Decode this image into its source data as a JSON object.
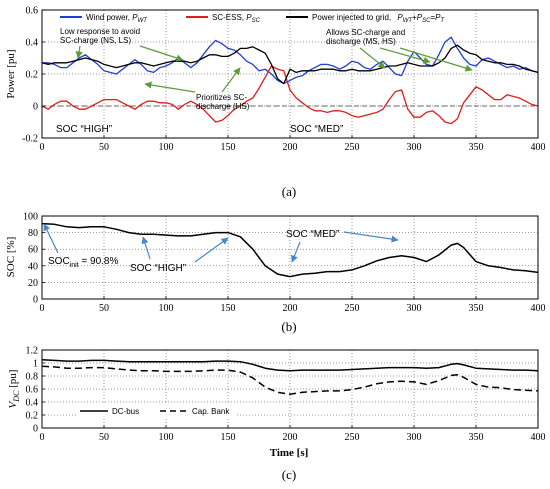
{
  "chart_data": [
    {
      "type": "line",
      "panel": "(a)",
      "ylabel": "Power [pu]",
      "xlim": [
        0,
        400
      ],
      "ylim": [
        -0.2,
        0.6
      ],
      "xticks": [
        0,
        50,
        100,
        150,
        200,
        250,
        300,
        350,
        400
      ],
      "yticks": [
        -0.2,
        0,
        0.2,
        0.4,
        0.6
      ],
      "ytick_labels": [
        "-0.2",
        "0",
        "0.2",
        "0.4",
        "0.6"
      ],
      "grid": true,
      "legend_placement": "top",
      "legend": [
        {
          "text": "Wind power, ",
          "var": "P",
          "sub": "WT"
        },
        {
          "text": "SC-ESS, ",
          "var": "P",
          "sub": "SC"
        },
        {
          "text": "Power injected to grid, ",
          "var": "P",
          "sub": "WT",
          "suffix": "+P",
          "suffix_sub": "SC",
          "suffix2": "=P",
          "suffix2_sub": "T"
        }
      ],
      "series": [
        {
          "name": "Wind power",
          "color": "#1f3fd8",
          "x": [
            0,
            5,
            10,
            15,
            20,
            25,
            30,
            35,
            40,
            45,
            50,
            55,
            60,
            65,
            70,
            75,
            80,
            85,
            90,
            95,
            100,
            105,
            110,
            115,
            120,
            125,
            130,
            135,
            140,
            145,
            150,
            155,
            160,
            165,
            170,
            175,
            180,
            185,
            190,
            195,
            200,
            205,
            210,
            215,
            220,
            225,
            230,
            235,
            240,
            245,
            250,
            255,
            260,
            265,
            270,
            275,
            280,
            285,
            290,
            295,
            300,
            305,
            310,
            315,
            320,
            325,
            330,
            335,
            340,
            345,
            350,
            355,
            360,
            365,
            370,
            375,
            380,
            385,
            390,
            395,
            400
          ],
          "y": [
            0.27,
            0.27,
            0.26,
            0.24,
            0.24,
            0.27,
            0.3,
            0.32,
            0.29,
            0.26,
            0.22,
            0.21,
            0.2,
            0.23,
            0.26,
            0.29,
            0.26,
            0.22,
            0.21,
            0.24,
            0.25,
            0.27,
            0.3,
            0.27,
            0.24,
            0.27,
            0.32,
            0.37,
            0.41,
            0.39,
            0.36,
            0.35,
            0.32,
            0.28,
            0.26,
            0.22,
            0.23,
            0.2,
            0.16,
            0.14,
            0.16,
            0.18,
            0.19,
            0.22,
            0.24,
            0.26,
            0.26,
            0.25,
            0.23,
            0.25,
            0.28,
            0.27,
            0.24,
            0.23,
            0.26,
            0.28,
            0.24,
            0.2,
            0.19,
            0.28,
            0.34,
            0.3,
            0.26,
            0.25,
            0.32,
            0.4,
            0.43,
            0.36,
            0.3,
            0.26,
            0.25,
            0.29,
            0.3,
            0.28,
            0.26,
            0.24,
            0.25,
            0.23,
            0.24,
            0.22,
            0.21
          ]
        },
        {
          "name": "SC-ESS",
          "color": "#e21c1c",
          "x": [
            0,
            5,
            10,
            15,
            20,
            25,
            30,
            35,
            40,
            45,
            50,
            55,
            60,
            65,
            70,
            75,
            80,
            85,
            90,
            95,
            100,
            105,
            110,
            115,
            120,
            125,
            130,
            135,
            140,
            145,
            150,
            155,
            160,
            165,
            170,
            175,
            180,
            185,
            190,
            195,
            200,
            205,
            210,
            215,
            220,
            225,
            230,
            235,
            240,
            245,
            250,
            255,
            260,
            265,
            270,
            275,
            280,
            285,
            290,
            295,
            300,
            305,
            310,
            315,
            320,
            325,
            330,
            335,
            340,
            345,
            350,
            355,
            360,
            365,
            370,
            375,
            380,
            385,
            390,
            395,
            400
          ],
          "y": [
            0.0,
            -0.02,
            0.01,
            0.03,
            0.03,
            0.0,
            -0.02,
            -0.02,
            0.0,
            0.02,
            0.04,
            0.04,
            0.04,
            0.02,
            0.0,
            -0.02,
            0.01,
            0.03,
            0.03,
            0.02,
            0.02,
            0.01,
            -0.02,
            0.01,
            0.03,
            0.01,
            -0.02,
            -0.06,
            -0.1,
            -0.09,
            -0.06,
            -0.02,
            0.0,
            0.03,
            0.05,
            0.11,
            0.18,
            0.25,
            0.23,
            0.22,
            0.1,
            0.05,
            0.02,
            -0.01,
            -0.03,
            -0.03,
            -0.04,
            -0.03,
            -0.03,
            -0.04,
            -0.06,
            -0.07,
            -0.06,
            -0.05,
            -0.04,
            -0.02,
            0.04,
            0.09,
            0.1,
            -0.02,
            -0.07,
            -0.07,
            -0.04,
            -0.03,
            -0.06,
            -0.1,
            -0.11,
            -0.08,
            0.02,
            0.07,
            0.12,
            0.1,
            0.07,
            0.04,
            0.04,
            0.07,
            0.06,
            0.05,
            0.03,
            0.01,
            0.0
          ]
        },
        {
          "name": "Power injected to grid",
          "color": "#000000",
          "x": [
            0,
            5,
            10,
            15,
            20,
            25,
            30,
            35,
            40,
            45,
            50,
            55,
            60,
            65,
            70,
            75,
            80,
            85,
            90,
            95,
            100,
            105,
            110,
            115,
            120,
            125,
            130,
            135,
            140,
            145,
            150,
            155,
            160,
            165,
            170,
            175,
            180,
            185,
            190,
            195,
            200,
            205,
            210,
            215,
            220,
            225,
            230,
            235,
            240,
            245,
            250,
            255,
            260,
            265,
            270,
            275,
            280,
            285,
            290,
            295,
            300,
            305,
            310,
            315,
            320,
            325,
            330,
            335,
            340,
            345,
            350,
            355,
            360,
            365,
            370,
            375,
            380,
            385,
            390,
            395,
            400
          ],
          "y": [
            0.27,
            0.26,
            0.27,
            0.27,
            0.27,
            0.28,
            0.29,
            0.3,
            0.29,
            0.28,
            0.26,
            0.25,
            0.24,
            0.25,
            0.26,
            0.27,
            0.27,
            0.26,
            0.25,
            0.26,
            0.27,
            0.28,
            0.28,
            0.28,
            0.27,
            0.28,
            0.3,
            0.32,
            0.32,
            0.31,
            0.31,
            0.33,
            0.36,
            0.36,
            0.37,
            0.35,
            0.33,
            0.26,
            0.17,
            0.14,
            0.23,
            0.21,
            0.22,
            0.22,
            0.22,
            0.23,
            0.23,
            0.23,
            0.22,
            0.22,
            0.23,
            0.22,
            0.22,
            0.22,
            0.23,
            0.24,
            0.25,
            0.25,
            0.26,
            0.27,
            0.26,
            0.25,
            0.25,
            0.25,
            0.27,
            0.3,
            0.36,
            0.38,
            0.35,
            0.33,
            0.32,
            0.29,
            0.28,
            0.27,
            0.27,
            0.26,
            0.26,
            0.25,
            0.23,
            0.22,
            0.21
          ]
        }
      ],
      "annotations": [
        {
          "lines": [
            "Low response to avoid",
            "SC-charge (NS, LS)"
          ]
        },
        {
          "lines": [
            "Prioritizes SC-",
            "discharge (HS)"
          ]
        },
        {
          "lines": [
            "Allows SC-charge and",
            "discharge (MS, HS)"
          ]
        },
        {
          "text": "SOC “HIGH”"
        },
        {
          "text": "SOC “MED”"
        }
      ],
      "caption": "(a)"
    },
    {
      "type": "line",
      "panel": "(b)",
      "ylabel": "SOC [%]",
      "xlim": [
        0,
        400
      ],
      "ylim": [
        0,
        100
      ],
      "xticks": [
        0,
        50,
        100,
        150,
        200,
        250,
        300,
        350,
        400
      ],
      "yticks": [
        0,
        20,
        40,
        60,
        80,
        100
      ],
      "ytick_labels": [
        "0",
        "20",
        "40",
        "60",
        "80",
        "100"
      ],
      "grid": true,
      "series": [
        {
          "color": "#000000",
          "x": [
            0,
            10,
            20,
            30,
            40,
            50,
            60,
            70,
            80,
            90,
            100,
            110,
            120,
            130,
            140,
            150,
            160,
            170,
            180,
            190,
            200,
            210,
            220,
            230,
            240,
            250,
            260,
            270,
            280,
            290,
            300,
            310,
            320,
            330,
            335,
            340,
            350,
            360,
            370,
            380,
            390,
            400
          ],
          "y": [
            90.8,
            90,
            87,
            86,
            87,
            87,
            84,
            80,
            78,
            78,
            77,
            76,
            76,
            78,
            80,
            80,
            75,
            60,
            40,
            30,
            27,
            30,
            31,
            33,
            33,
            35,
            40,
            46,
            50,
            52,
            50,
            45,
            53,
            65,
            67,
            62,
            45,
            40,
            38,
            35,
            34,
            32
          ]
        }
      ],
      "annotations": [
        {
          "text_main": "SOC",
          "text_sub": "init",
          "text_rest": " = 90.8%"
        },
        {
          "text": "SOC “HIGH”"
        },
        {
          "text": "SOC “MED”"
        }
      ],
      "caption": "(b)"
    },
    {
      "type": "line",
      "panel": "(c)",
      "ylabel_var": "V",
      "ylabel_sub": "DC",
      "ylabel_unit": " [pu]",
      "xlabel": "Time [s]",
      "xlim": [
        0,
        400
      ],
      "ylim": [
        0,
        1.2
      ],
      "xticks": [
        0,
        50,
        100,
        150,
        200,
        250,
        300,
        350,
        400
      ],
      "yticks": [
        0,
        0.2,
        0.4,
        0.6,
        0.8,
        1,
        1.2
      ],
      "ytick_labels": [
        "0",
        "0.2",
        "0.4",
        "0.6",
        "0.8",
        "1",
        "1.2"
      ],
      "grid": true,
      "legend_placement": "bottom-left",
      "series": [
        {
          "name": "DC-bus",
          "color": "#000000",
          "dash": "solid",
          "x": [
            0,
            10,
            20,
            30,
            40,
            50,
            60,
            70,
            80,
            90,
            100,
            110,
            120,
            130,
            140,
            150,
            160,
            170,
            180,
            190,
            200,
            210,
            220,
            230,
            240,
            250,
            260,
            270,
            280,
            290,
            300,
            310,
            320,
            330,
            335,
            340,
            350,
            360,
            370,
            380,
            390,
            400
          ],
          "y": [
            1.05,
            1.04,
            1.03,
            1.03,
            1.04,
            1.04,
            1.03,
            1.02,
            1.02,
            1.02,
            1.02,
            1.02,
            1.02,
            1.02,
            1.03,
            1.03,
            1.02,
            0.98,
            0.92,
            0.89,
            0.88,
            0.89,
            0.89,
            0.89,
            0.89,
            0.9,
            0.91,
            0.92,
            0.93,
            0.93,
            0.93,
            0.92,
            0.93,
            0.98,
            0.99,
            0.97,
            0.92,
            0.91,
            0.9,
            0.89,
            0.89,
            0.88
          ]
        },
        {
          "name": "Cap. Bank",
          "color": "#000000",
          "dash": "dashed",
          "x": [
            0,
            10,
            20,
            30,
            40,
            50,
            60,
            70,
            80,
            90,
            100,
            110,
            120,
            130,
            140,
            150,
            160,
            170,
            180,
            190,
            200,
            210,
            220,
            230,
            240,
            250,
            260,
            270,
            280,
            290,
            300,
            310,
            320,
            330,
            335,
            340,
            350,
            360,
            370,
            380,
            390,
            400
          ],
          "y": [
            0.95,
            0.94,
            0.92,
            0.92,
            0.93,
            0.93,
            0.91,
            0.89,
            0.88,
            0.88,
            0.87,
            0.87,
            0.87,
            0.88,
            0.89,
            0.89,
            0.86,
            0.77,
            0.63,
            0.55,
            0.52,
            0.55,
            0.56,
            0.57,
            0.57,
            0.59,
            0.63,
            0.68,
            0.71,
            0.72,
            0.71,
            0.67,
            0.73,
            0.81,
            0.82,
            0.78,
            0.67,
            0.63,
            0.62,
            0.59,
            0.58,
            0.57
          ]
        }
      ],
      "caption": "(c)"
    }
  ]
}
